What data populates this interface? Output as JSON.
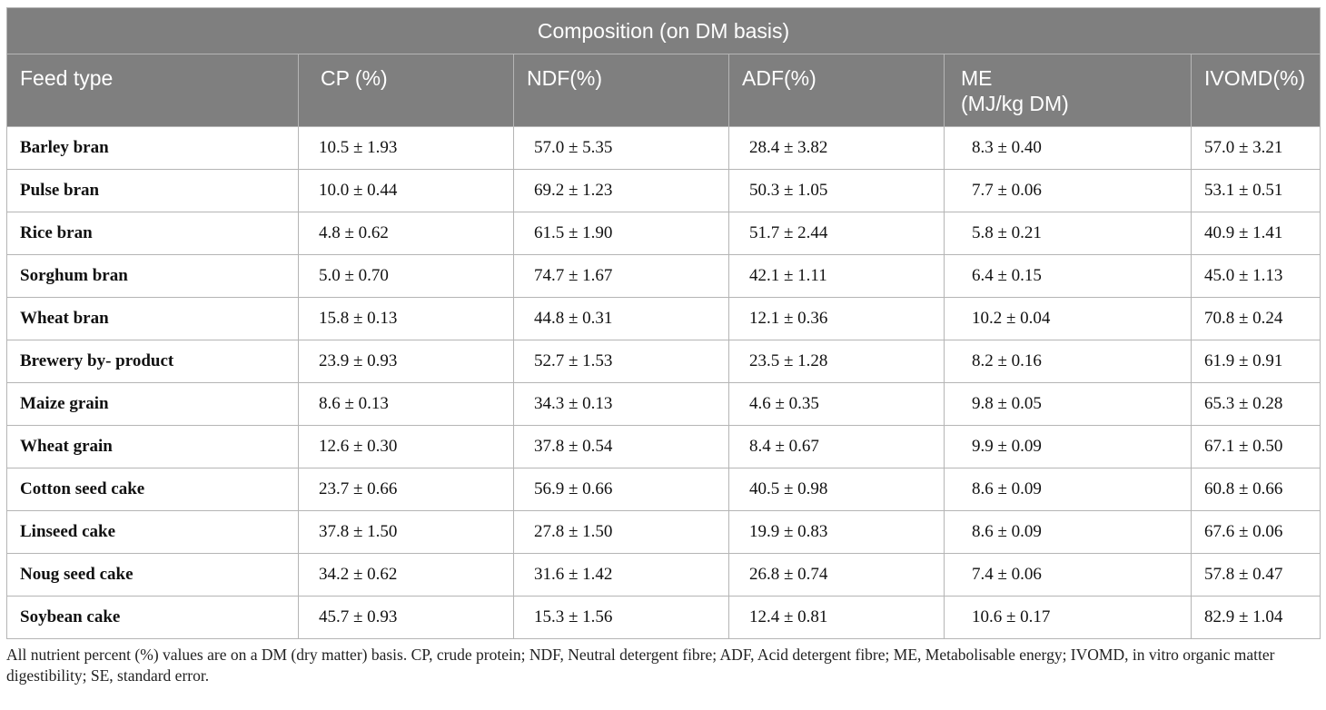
{
  "table": {
    "group_header": "Composition (on DM basis)",
    "columns": [
      "Feed type",
      "CP (%)",
      "NDF(%)",
      "ADF(%)",
      "ME\n(MJ/kg DM)",
      "IVOMD(%)"
    ],
    "rows": [
      [
        "Barley bran",
        "10.5 ± 1.93",
        "57.0 ± 5.35",
        "28.4 ± 3.82",
        "8.3 ± 0.40",
        "57.0 ± 3.21"
      ],
      [
        "Pulse bran",
        "10.0 ± 0.44",
        "69.2 ± 1.23",
        "50.3 ± 1.05",
        "7.7 ± 0.06",
        "53.1 ± 0.51"
      ],
      [
        "Rice bran",
        "4.8 ± 0.62",
        "61.5 ± 1.90",
        "51.7 ± 2.44",
        "5.8 ± 0.21",
        "40.9 ± 1.41"
      ],
      [
        "Sorghum bran",
        "5.0 ± 0.70",
        "74.7 ± 1.67",
        "42.1 ± 1.11",
        "6.4 ± 0.15",
        "45.0 ± 1.13"
      ],
      [
        "Wheat bran",
        "15.8 ± 0.13",
        "44.8 ± 0.31",
        "12.1 ± 0.36",
        "10.2 ± 0.04",
        "70.8 ± 0.24"
      ],
      [
        "Brewery by- product",
        "23.9 ± 0.93",
        "52.7 ± 1.53",
        "23.5 ± 1.28",
        "8.2 ± 0.16",
        "61.9 ± 0.91"
      ],
      [
        "Maize grain",
        "8.6 ± 0.13",
        "34.3 ± 0.13",
        "4.6 ± 0.35",
        "9.8 ± 0.05",
        "65.3 ± 0.28"
      ],
      [
        "Wheat grain",
        "12.6 ± 0.30",
        "37.8 ± 0.54",
        "8.4 ± 0.67",
        "9.9 ± 0.09",
        "67.1 ± 0.50"
      ],
      [
        "Cotton seed cake",
        "23.7 ± 0.66",
        "56.9 ± 0.66",
        "40.5 ± 0.98",
        "8.6 ± 0.09",
        "60.8 ± 0.66"
      ],
      [
        "Linseed cake",
        "37.8 ± 1.50",
        "27.8 ± 1.50",
        "19.9 ± 0.83",
        "8.6 ± 0.09",
        "67.6 ± 0.06"
      ],
      [
        "Noug seed cake",
        "34.2 ± 0.62",
        "31.6 ± 1.42",
        "26.8 ± 0.74",
        "7.4 ± 0.06",
        "57.8 ± 0.47"
      ],
      [
        "Soybean cake",
        "45.7 ± 0.93",
        "15.3 ± 1.56",
        "12.4 ± 0.81",
        "10.6 ± 0.17",
        "82.9 ± 1.04"
      ]
    ]
  },
  "footnote": "All nutrient percent (%) values are on a DM (dry matter) basis. CP, crude protein; NDF, Neutral detergent fibre; ADF, Acid detergent fibre; ME, Metabolisable energy; IVOMD, in vitro organic matter digestibility; SE, standard error."
}
